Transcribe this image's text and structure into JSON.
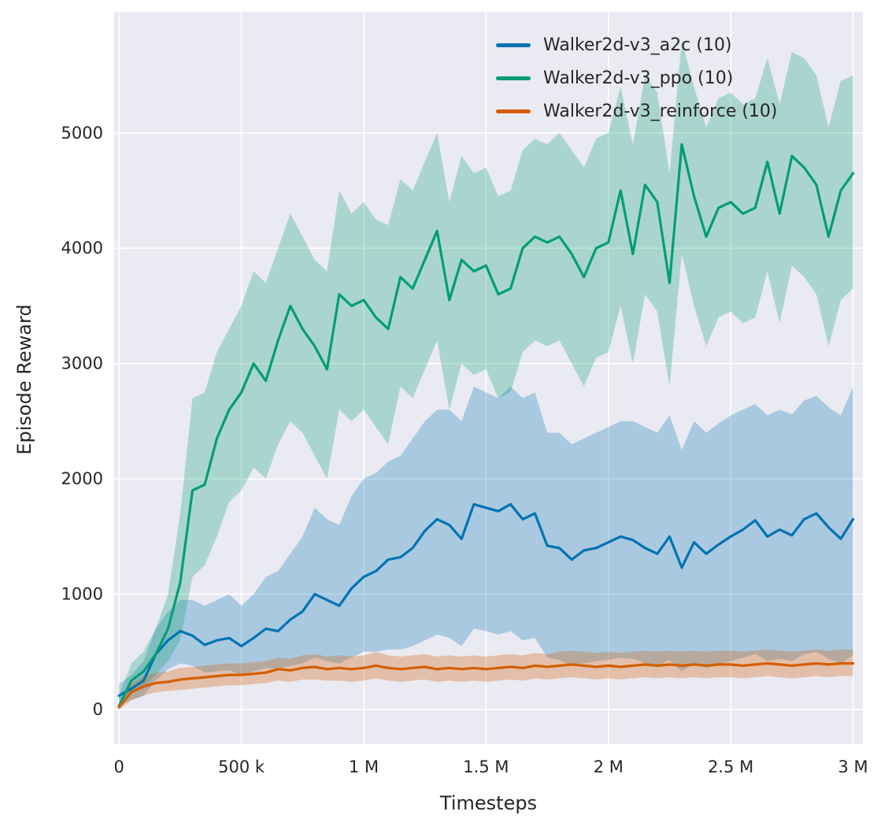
{
  "figure": {
    "background": "#ffffff",
    "plot_background": "#eaeaf2",
    "grid_color": "#ffffff",
    "text_color": "#262626"
  },
  "chart_data": {
    "type": "line",
    "title": "",
    "xlabel": "Timesteps",
    "ylabel": "Episode Reward",
    "grid": true,
    "legend_position": "upper-right",
    "xlim": [
      -20000,
      3040000
    ],
    "ylim": [
      -300,
      6050
    ],
    "xticks": {
      "values": [
        0,
        500000,
        1000000,
        1500000,
        2000000,
        2500000,
        3000000
      ],
      "labels": [
        "0",
        "500 k",
        "1 M",
        "1.5 M",
        "2 M",
        "2.5 M",
        "3 M"
      ]
    },
    "yticks": {
      "values": [
        0,
        1000,
        2000,
        3000,
        4000,
        5000
      ],
      "labels": [
        "0",
        "1000",
        "2000",
        "3000",
        "4000",
        "5000"
      ]
    },
    "x": [
      0,
      50000,
      100000,
      150000,
      200000,
      250000,
      300000,
      350000,
      400000,
      450000,
      500000,
      550000,
      600000,
      650000,
      700000,
      750000,
      800000,
      850000,
      900000,
      950000,
      1000000,
      1050000,
      1100000,
      1150000,
      1200000,
      1250000,
      1300000,
      1350000,
      1400000,
      1450000,
      1500000,
      1550000,
      1600000,
      1650000,
      1700000,
      1750000,
      1800000,
      1850000,
      1900000,
      1950000,
      2000000,
      2050000,
      2100000,
      2150000,
      2200000,
      2250000,
      2300000,
      2350000,
      2400000,
      2450000,
      2500000,
      2550000,
      2600000,
      2650000,
      2700000,
      2750000,
      2800000,
      2850000,
      2900000,
      2950000,
      3000000
    ],
    "series": [
      {
        "id": "a2c",
        "name": "Walker2d-v3_a2c (10)",
        "color": "#0173b2",
        "band_alpha": 0.28,
        "values": [
          120,
          180,
          250,
          480,
          600,
          680,
          640,
          560,
          600,
          620,
          550,
          620,
          700,
          680,
          780,
          850,
          1000,
          950,
          900,
          1050,
          1150,
          1200,
          1300,
          1320,
          1400,
          1550,
          1650,
          1600,
          1480,
          1780,
          1750,
          1720,
          1780,
          1650,
          1700,
          1420,
          1400,
          1300,
          1380,
          1400,
          1450,
          1500,
          1470,
          1400,
          1350,
          1500,
          1230,
          1450,
          1350,
          1430,
          1500,
          1560,
          1640,
          1500,
          1560,
          1510,
          1650,
          1700,
          1580,
          1480,
          1650
        ],
        "lower": [
          40,
          80,
          120,
          250,
          350,
          400,
          380,
          320,
          330,
          340,
          300,
          330,
          360,
          350,
          380,
          400,
          450,
          420,
          400,
          450,
          500,
          500,
          520,
          520,
          550,
          600,
          650,
          620,
          550,
          700,
          680,
          650,
          680,
          600,
          620,
          450,
          430,
          380,
          400,
          420,
          430,
          450,
          440,
          400,
          380,
          430,
          330,
          400,
          360,
          390,
          420,
          450,
          480,
          420,
          440,
          420,
          480,
          500,
          440,
          400,
          470
        ],
        "upper": [
          220,
          300,
          420,
          700,
          850,
          950,
          950,
          900,
          950,
          1000,
          900,
          1000,
          1150,
          1200,
          1350,
          1500,
          1750,
          1650,
          1600,
          1850,
          2000,
          2050,
          2150,
          2200,
          2350,
          2500,
          2600,
          2600,
          2500,
          2800,
          2750,
          2700,
          2800,
          2700,
          2750,
          2400,
          2400,
          2300,
          2350,
          2400,
          2450,
          2500,
          2500,
          2450,
          2400,
          2550,
          2250,
          2500,
          2400,
          2480,
          2550,
          2600,
          2650,
          2550,
          2600,
          2560,
          2680,
          2720,
          2620,
          2550,
          2800
        ]
      },
      {
        "id": "ppo",
        "name": "Walker2d-v3_ppo (10)",
        "color": "#029e73",
        "band_alpha": 0.28,
        "values": [
          30,
          250,
          330,
          480,
          700,
          1100,
          1900,
          1950,
          2350,
          2600,
          2750,
          3000,
          2850,
          3200,
          3500,
          3300,
          3150,
          2950,
          3600,
          3500,
          3550,
          3400,
          3300,
          3750,
          3650,
          3900,
          4150,
          3550,
          3900,
          3800,
          3850,
          3600,
          3650,
          4000,
          4100,
          4050,
          4100,
          3950,
          3750,
          4000,
          4050,
          4500,
          3950,
          4550,
          4400,
          3700,
          4900,
          4450,
          4100,
          4350,
          4400,
          4300,
          4350,
          4750,
          4300,
          4800,
          4700,
          4550,
          4100,
          4500,
          4650
        ],
        "lower": [
          0,
          150,
          200,
          300,
          420,
          600,
          1150,
          1250,
          1500,
          1800,
          1900,
          2100,
          2000,
          2300,
          2500,
          2400,
          2200,
          2000,
          2600,
          2500,
          2600,
          2450,
          2300,
          2800,
          2700,
          2950,
          3200,
          2600,
          3000,
          2900,
          2950,
          2700,
          2750,
          3100,
          3200,
          3150,
          3200,
          3000,
          2800,
          3050,
          3100,
          3500,
          3000,
          3600,
          3450,
          2800,
          3950,
          3500,
          3150,
          3400,
          3450,
          3350,
          3400,
          3800,
          3350,
          3850,
          3750,
          3600,
          3150,
          3550,
          3650
        ],
        "upper": [
          120,
          400,
          500,
          700,
          1000,
          1700,
          2700,
          2750,
          3100,
          3300,
          3500,
          3800,
          3700,
          4000,
          4300,
          4100,
          3900,
          3800,
          4500,
          4300,
          4400,
          4250,
          4200,
          4600,
          4500,
          4750,
          5000,
          4400,
          4800,
          4650,
          4700,
          4450,
          4500,
          4850,
          4950,
          4900,
          5000,
          4850,
          4700,
          4950,
          5000,
          5400,
          4900,
          5500,
          5350,
          4650,
          5800,
          5400,
          5050,
          5300,
          5350,
          5250,
          5300,
          5650,
          5250,
          5700,
          5650,
          5500,
          5050,
          5450,
          5500
        ]
      },
      {
        "id": "reinforce",
        "name": "Walker2d-v3_reinforce (10)",
        "color": "#d55e00",
        "band_alpha": 0.3,
        "values": [
          20,
          150,
          200,
          230,
          240,
          260,
          270,
          280,
          290,
          300,
          300,
          310,
          320,
          350,
          340,
          360,
          370,
          350,
          360,
          350,
          360,
          380,
          360,
          350,
          360,
          370,
          350,
          360,
          350,
          360,
          350,
          360,
          370,
          360,
          380,
          370,
          380,
          390,
          380,
          370,
          380,
          370,
          380,
          390,
          380,
          390,
          380,
          390,
          380,
          390,
          390,
          380,
          390,
          400,
          390,
          380,
          390,
          400,
          390,
          400,
          400
        ],
        "lower": [
          0,
          80,
          120,
          150,
          160,
          170,
          180,
          190,
          200,
          210,
          210,
          220,
          230,
          250,
          240,
          260,
          260,
          250,
          250,
          240,
          250,
          270,
          250,
          240,
          250,
          260,
          240,
          250,
          240,
          250,
          240,
          250,
          260,
          250,
          270,
          260,
          270,
          280,
          270,
          260,
          270,
          260,
          270,
          280,
          270,
          280,
          270,
          280,
          270,
          280,
          280,
          270,
          280,
          290,
          280,
          270,
          280,
          290,
          280,
          290,
          290
        ],
        "upper": [
          60,
          220,
          290,
          320,
          330,
          360,
          370,
          380,
          390,
          400,
          400,
          410,
          420,
          450,
          440,
          470,
          480,
          460,
          470,
          460,
          470,
          500,
          470,
          460,
          470,
          480,
          460,
          470,
          460,
          470,
          460,
          470,
          480,
          470,
          490,
          480,
          500,
          510,
          500,
          490,
          500,
          490,
          500,
          510,
          500,
          510,
          500,
          510,
          500,
          510,
          510,
          500,
          510,
          520,
          510,
          500,
          510,
          520,
          510,
          520,
          520
        ]
      }
    ]
  }
}
